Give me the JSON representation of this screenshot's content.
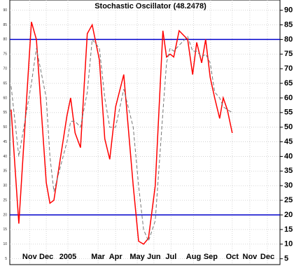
{
  "chart_data": {
    "type": "line",
    "title": "Stochastic Oscillator (48.2478)",
    "x": [
      0.3,
      2.0,
      4.8,
      5.9,
      8.1,
      8.9,
      9.8,
      12.7,
      13.5,
      14.5,
      15.7,
      17.2,
      18.3,
      19.9,
      21.1,
      22.2,
      23.5,
      25.3,
      27.4,
      28.6,
      29.7,
      30.8,
      32.3,
      34.0,
      34.8,
      35.6,
      36.4,
      37.6,
      39.5,
      40.6,
      41.5,
      42.6,
      43.5,
      44.5,
      45.5,
      46.6,
      47.4,
      48.3,
      49.4
    ],
    "series": [
      {
        "color": "#ff0000",
        "dash": false,
        "values": [
          56,
          17,
          86,
          80,
          31,
          24,
          25,
          54,
          60,
          48,
          43,
          82,
          85,
          73,
          46,
          39,
          57,
          68,
          30,
          11,
          10,
          12,
          30,
          83,
          74,
          75,
          74,
          83,
          80,
          68,
          79,
          72,
          80,
          67,
          60,
          53,
          60,
          56,
          48
        ]
      },
      {
        "color": "#777777",
        "dash": true,
        "values": [
          64,
          40,
          65,
          77,
          60,
          40,
          28,
          45,
          52,
          52,
          50,
          62,
          80,
          77,
          60,
          50,
          50,
          63,
          50,
          30,
          15,
          11,
          18,
          55,
          72,
          77,
          76,
          78,
          81,
          76,
          76,
          74,
          75,
          72,
          62,
          60,
          57,
          56,
          55
        ]
      }
    ],
    "xlim": [
      0,
      60
    ],
    "xticks": [
      {
        "value": 4.4,
        "label": "Nov"
      },
      {
        "value": 8.1,
        "label": "Dec"
      },
      {
        "value": 12.9,
        "label": "2005"
      },
      {
        "value": 19.6,
        "label": "Mar"
      },
      {
        "value": 23.5,
        "label": "Apr"
      },
      {
        "value": 28.3,
        "label": "May"
      },
      {
        "value": 32,
        "label": "Jun"
      },
      {
        "value": 35.8,
        "label": "Jul"
      },
      {
        "value": 40.8,
        "label": "Aug"
      },
      {
        "value": 44.6,
        "label": "Sep"
      },
      {
        "value": 49.4,
        "label": "Oct"
      },
      {
        "value": 53.3,
        "label": "Nov"
      },
      {
        "value": 57.2,
        "label": "Dec"
      }
    ],
    "ylim": [
      3,
      93.5
    ],
    "yticks": [
      5,
      10,
      15,
      20,
      25,
      30,
      35,
      40,
      45,
      50,
      55,
      60,
      65,
      70,
      75,
      80,
      85,
      90
    ],
    "reference_lines": [
      20,
      80
    ],
    "reference_color": "#0000cc",
    "grid": true
  }
}
